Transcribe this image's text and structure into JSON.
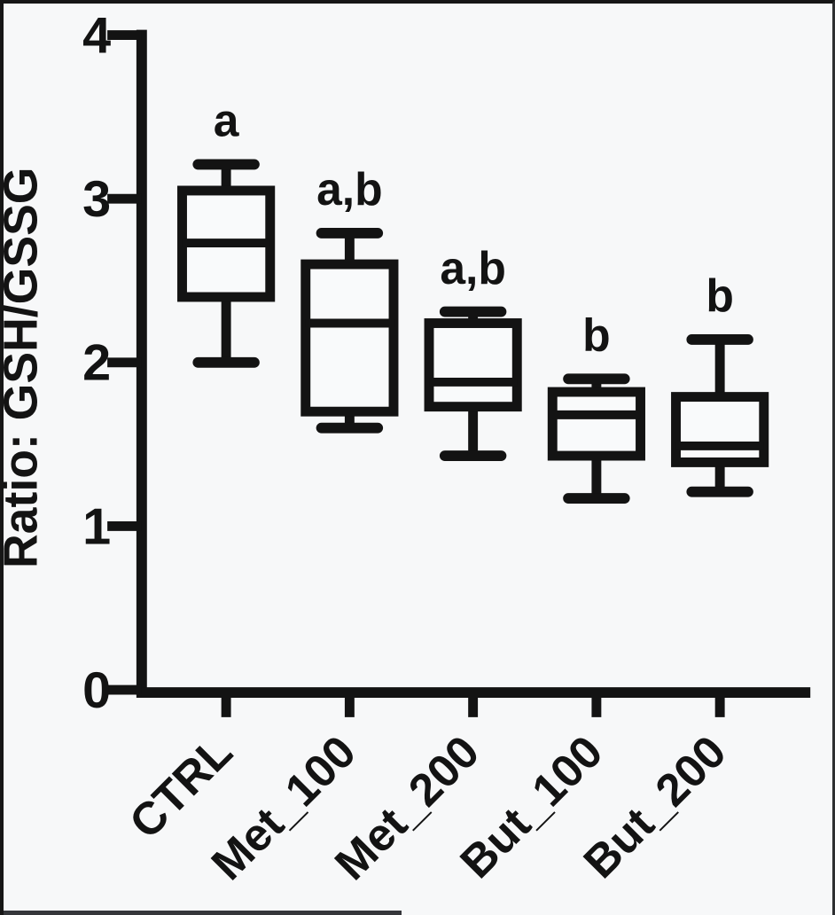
{
  "chart_data": {
    "type": "box",
    "title": "",
    "xlabel": "",
    "ylabel": "Ratio: GSH/GSSG",
    "ylim": [
      0,
      4
    ],
    "yticks": [
      0,
      1,
      2,
      3,
      4
    ],
    "grid": false,
    "legend": "none",
    "categories": [
      "CTRL",
      "Met_100",
      "Met_200",
      "But_100",
      "But_200"
    ],
    "boxes": [
      {
        "category": "CTRL",
        "whisker_low": 2.0,
        "q1": 2.4,
        "median": 2.73,
        "q3": 3.05,
        "whisker_high": 3.21,
        "sig_label": "a"
      },
      {
        "category": "Met_100",
        "whisker_low": 1.6,
        "q1": 1.7,
        "median": 2.24,
        "q3": 2.6,
        "whisker_high": 2.79,
        "sig_label": "a,b"
      },
      {
        "category": "Met_200",
        "whisker_low": 1.43,
        "q1": 1.73,
        "median": 1.88,
        "q3": 2.24,
        "whisker_high": 2.31,
        "sig_label": "a,b"
      },
      {
        "category": "But_100",
        "whisker_low": 1.17,
        "q1": 1.43,
        "median": 1.68,
        "q3": 1.82,
        "whisker_high": 1.9,
        "sig_label": "b"
      },
      {
        "category": "But_200",
        "whisker_low": 1.21,
        "q1": 1.39,
        "median": 1.49,
        "q3": 1.79,
        "whisker_high": 2.14,
        "sig_label": "b"
      }
    ],
    "colors": {
      "ink": "#131313",
      "background": "#f7f8f9",
      "box_fill": "#f9fafb"
    }
  }
}
